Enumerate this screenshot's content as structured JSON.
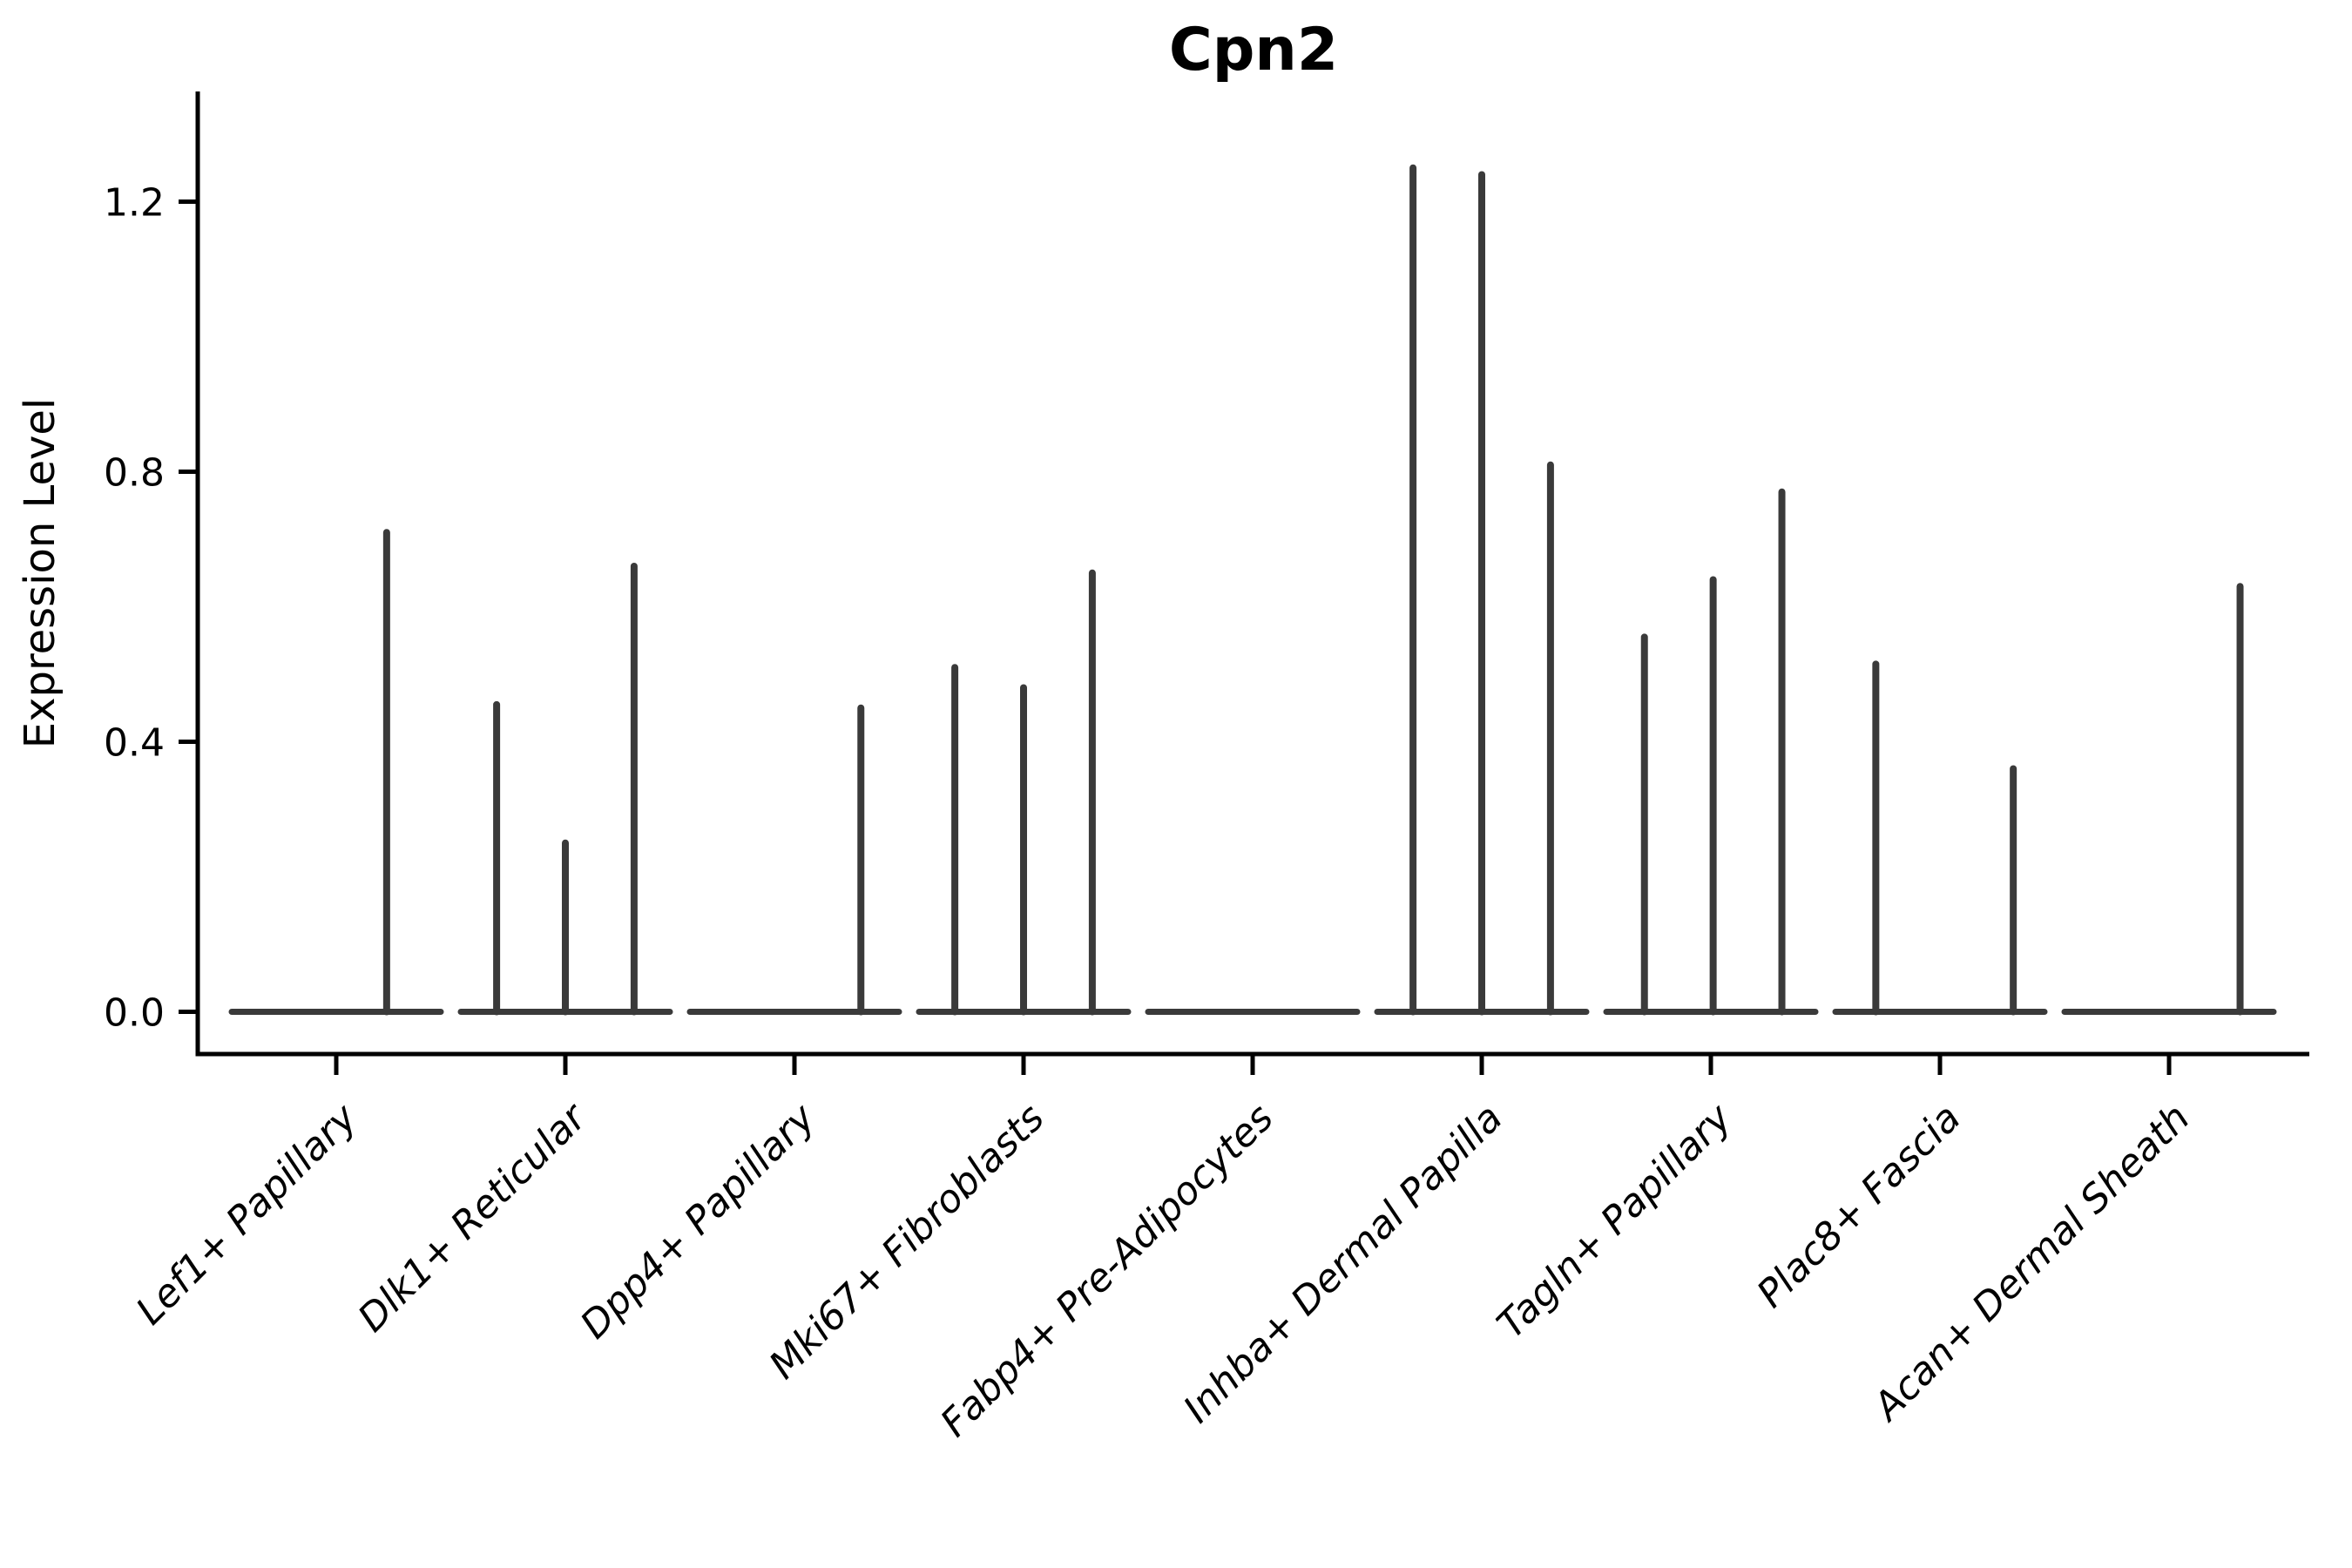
{
  "figure": {
    "title": "Cpn2",
    "ylabel": "Expression Level"
  },
  "style": {
    "background": "#ffffff",
    "ink": "#3a3a3a",
    "axis_color": "#000000"
  },
  "chart_data": {
    "type": "violin",
    "title": "Cpn2",
    "xlabel": "",
    "ylabel": "Expression Level",
    "grid": false,
    "legend": null,
    "ylim": [
      -0.06,
      1.36
    ],
    "yticks": [
      "0.0",
      "0.4",
      "0.8",
      "1.2"
    ],
    "ytick_values": [
      0.0,
      0.4,
      0.8,
      1.2
    ],
    "baseline_value": 0.0,
    "categories": [
      "Lef1+ Papillary",
      "Dlk1+ Reticular",
      "Dpp4+ Papillary",
      "Mki67+ Fibroblasts",
      "Fabp4+ Pre-Adipocytes",
      "Inhba+ Dermal Papilla",
      "Tagln+ Papillary",
      "Plac8+ Fascia",
      "Acan+ Dermal Sheath"
    ],
    "violins": [
      {
        "category": "Lef1+ Papillary",
        "spikes": [
          {
            "offset": 0.22,
            "value": 0.71
          }
        ]
      },
      {
        "category": "Dlk1+ Reticular",
        "spikes": [
          {
            "offset": -0.3,
            "value": 0.455
          },
          {
            "offset": 0.0,
            "value": 0.25
          },
          {
            "offset": 0.3,
            "value": 0.66
          }
        ]
      },
      {
        "category": "Dpp4+ Papillary",
        "spikes": [
          {
            "offset": 0.29,
            "value": 0.45
          }
        ]
      },
      {
        "category": "Mki67+ Fibroblasts",
        "spikes": [
          {
            "offset": -0.3,
            "value": 0.51
          },
          {
            "offset": 0.0,
            "value": 0.48
          },
          {
            "offset": 0.3,
            "value": 0.65
          }
        ]
      },
      {
        "category": "Fabp4+ Pre-Adipocytes",
        "spikes": []
      },
      {
        "category": "Inhba+ Dermal Papilla",
        "spikes": [
          {
            "offset": -0.3,
            "value": 1.25
          },
          {
            "offset": 0.0,
            "value": 1.24
          },
          {
            "offset": 0.3,
            "value": 0.81
          }
        ]
      },
      {
        "category": "Tagln+ Papillary",
        "spikes": [
          {
            "offset": -0.29,
            "value": 0.555
          },
          {
            "offset": 0.01,
            "value": 0.64
          },
          {
            "offset": 0.31,
            "value": 0.77
          }
        ]
      },
      {
        "category": "Plac8+ Fascia",
        "spikes": [
          {
            "offset": -0.28,
            "value": 0.515
          },
          {
            "offset": 0.32,
            "value": 0.36
          }
        ]
      },
      {
        "category": "Acan+ Dermal Sheath",
        "spikes": [
          {
            "offset": 0.31,
            "value": 0.63
          }
        ]
      }
    ]
  }
}
